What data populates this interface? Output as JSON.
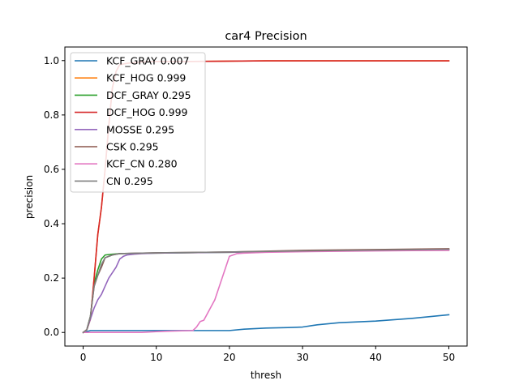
{
  "chart_data": {
    "type": "line",
    "title": "car4 Precision",
    "xlabel": "thresh",
    "ylabel": "precision",
    "xlim": [
      -2.5,
      52.5
    ],
    "ylim": [
      -0.05,
      1.05
    ],
    "xticks": [
      0,
      10,
      20,
      30,
      40,
      50
    ],
    "xtick_labels": [
      "0",
      "10",
      "20",
      "30",
      "40",
      "50"
    ],
    "yticks": [
      0.0,
      0.2,
      0.4,
      0.6,
      0.8,
      1.0
    ],
    "ytick_labels": [
      "0.0",
      "0.2",
      "0.4",
      "0.6",
      "0.8",
      "1.0"
    ],
    "grid": false,
    "legend_position": "upper-left",
    "series": [
      {
        "name": "KCF_GRAY 0.007",
        "color": "#1f77b4",
        "x": [
          0,
          1,
          2,
          5,
          10,
          15,
          20,
          22,
          25,
          28,
          30,
          32,
          35,
          40,
          45,
          50
        ],
        "y": [
          0,
          0.007,
          0.007,
          0.007,
          0.007,
          0.007,
          0.007,
          0.012,
          0.016,
          0.018,
          0.02,
          0.028,
          0.036,
          0.042,
          0.052,
          0.065
        ]
      },
      {
        "name": "KCF_HOG 0.999",
        "color": "#ff7f0e",
        "x": [
          0,
          0.5,
          1,
          1.5,
          2,
          2.5,
          3,
          3.5,
          4,
          4.5,
          5,
          6,
          8,
          10,
          15,
          20,
          25,
          30,
          40,
          50
        ],
        "y": [
          0,
          0.01,
          0.05,
          0.2,
          0.36,
          0.46,
          0.6,
          0.76,
          0.9,
          0.96,
          0.985,
          0.99,
          0.995,
          0.997,
          0.997,
          0.998,
          0.999,
          0.999,
          0.999,
          0.999
        ]
      },
      {
        "name": "DCF_GRAY 0.295",
        "color": "#2ca02c",
        "x": [
          0,
          0.5,
          1,
          1.5,
          2,
          2.5,
          3,
          4,
          5,
          10,
          20,
          30,
          40,
          50
        ],
        "y": [
          0,
          0.01,
          0.06,
          0.18,
          0.23,
          0.27,
          0.285,
          0.288,
          0.29,
          0.292,
          0.295,
          0.3,
          0.302,
          0.305
        ]
      },
      {
        "name": "DCF_HOG 0.999",
        "color": "#d62728",
        "x": [
          0,
          0.5,
          1,
          1.5,
          2,
          2.5,
          3,
          3.5,
          4,
          4.5,
          5,
          6,
          8,
          10,
          15,
          20,
          25,
          30,
          40,
          50
        ],
        "y": [
          0,
          0.01,
          0.05,
          0.2,
          0.36,
          0.46,
          0.6,
          0.76,
          0.9,
          0.96,
          0.985,
          0.99,
          0.995,
          0.997,
          0.997,
          0.998,
          0.999,
          0.999,
          0.999,
          0.999
        ]
      },
      {
        "name": "MOSSE 0.295",
        "color": "#9467bd",
        "x": [
          0,
          0.5,
          1,
          1.5,
          2,
          2.5,
          3,
          3.5,
          4,
          4.5,
          5,
          5.5,
          6,
          7,
          8,
          10,
          20,
          30,
          40,
          50
        ],
        "y": [
          0,
          0.01,
          0.05,
          0.09,
          0.12,
          0.14,
          0.17,
          0.2,
          0.22,
          0.24,
          0.27,
          0.28,
          0.285,
          0.288,
          0.29,
          0.292,
          0.295,
          0.3,
          0.302,
          0.305
        ]
      },
      {
        "name": "CSK 0.295",
        "color": "#8c564b",
        "x": [
          0,
          0.5,
          1,
          1.5,
          2,
          2.5,
          3,
          4,
          5,
          10,
          20,
          30,
          40,
          50
        ],
        "y": [
          0,
          0.01,
          0.06,
          0.17,
          0.21,
          0.24,
          0.275,
          0.285,
          0.29,
          0.293,
          0.296,
          0.302,
          0.305,
          0.308
        ]
      },
      {
        "name": "KCF_CN 0.280",
        "color": "#e377c2",
        "x": [
          0,
          1,
          5,
          8,
          10,
          12,
          15,
          15.5,
          16,
          16.5,
          17,
          18,
          19,
          20,
          21,
          22,
          25,
          30,
          40,
          50
        ],
        "y": [
          0,
          0.0,
          0.0,
          0.0,
          0.003,
          0.005,
          0.007,
          0.02,
          0.04,
          0.045,
          0.07,
          0.12,
          0.2,
          0.28,
          0.29,
          0.292,
          0.295,
          0.297,
          0.3,
          0.302
        ]
      },
      {
        "name": "CN 0.295",
        "color": "#7f7f7f",
        "x": [
          0,
          0.5,
          1,
          1.5,
          2,
          2.5,
          3,
          4,
          5,
          10,
          20,
          30,
          40,
          50
        ],
        "y": [
          0,
          0.01,
          0.06,
          0.17,
          0.21,
          0.25,
          0.275,
          0.285,
          0.29,
          0.293,
          0.296,
          0.3,
          0.303,
          0.306
        ]
      }
    ]
  }
}
